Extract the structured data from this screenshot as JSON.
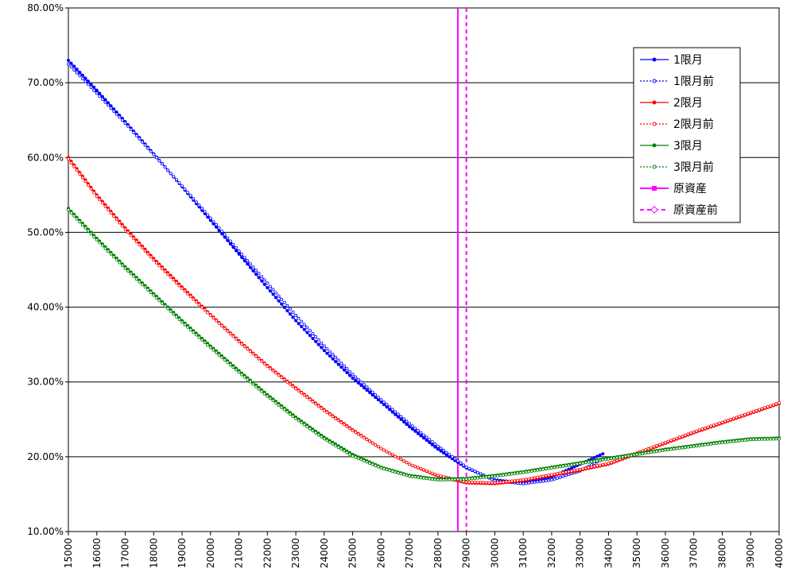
{
  "chart_data": {
    "type": "line",
    "title": "",
    "xlabel": "",
    "ylabel": "",
    "xlim": [
      15000,
      40000
    ],
    "ylim": [
      10,
      80
    ],
    "x_ticks": [
      15000,
      16000,
      17000,
      18000,
      19000,
      20000,
      21000,
      22000,
      23000,
      24000,
      25000,
      26000,
      27000,
      28000,
      29000,
      30000,
      31000,
      32000,
      33000,
      34000,
      35000,
      36000,
      37000,
      38000,
      39000,
      40000
    ],
    "x_tick_labels": [
      "15000",
      "16000",
      "17000",
      "18000",
      "19000",
      "20000",
      "21000",
      "22000",
      "23000",
      "24000",
      "25000",
      "26000",
      "27000",
      "28000",
      "29000",
      "30000",
      "31000",
      "32000",
      "33000",
      "34000",
      "35000",
      "36000",
      "37000",
      "38000",
      "39000",
      "40000"
    ],
    "y_ticks": [
      10,
      20,
      30,
      40,
      50,
      60,
      70,
      80
    ],
    "y_tick_labels": [
      "10.00%",
      "20.00%",
      "30.00%",
      "40.00%",
      "50.00%",
      "60.00%",
      "70.00%",
      "80.00%"
    ],
    "grid": "horizontal",
    "legend_position": "top-right",
    "series": [
      {
        "name": "1限月",
        "color": "#0000ff",
        "style": "solid",
        "marker": "filled",
        "points": [
          [
            15000,
            73.0
          ],
          [
            16000,
            69.0
          ],
          [
            17000,
            64.8
          ],
          [
            18000,
            60.5
          ],
          [
            19000,
            56.1
          ],
          [
            20000,
            51.6
          ],
          [
            21000,
            47.1
          ],
          [
            22000,
            42.6
          ],
          [
            23000,
            38.2
          ],
          [
            24000,
            34.2
          ],
          [
            25000,
            30.5
          ],
          [
            26000,
            27.3
          ],
          [
            27000,
            24.0
          ],
          [
            28000,
            21.0
          ],
          [
            29000,
            18.5
          ],
          [
            30000,
            16.9
          ],
          [
            31000,
            16.5
          ],
          [
            32000,
            17.3
          ],
          [
            33000,
            19.0
          ],
          [
            33800,
            20.4
          ]
        ]
      },
      {
        "name": "1限月前",
        "color": "#0000ff",
        "style": "dotted",
        "marker": "open",
        "points": [
          [
            15000,
            72.5
          ],
          [
            16000,
            68.6
          ],
          [
            17000,
            64.6
          ],
          [
            18000,
            60.4
          ],
          [
            19000,
            56.2
          ],
          [
            20000,
            51.9
          ],
          [
            21000,
            47.5
          ],
          [
            22000,
            43.2
          ],
          [
            23000,
            38.9
          ],
          [
            24000,
            34.8
          ],
          [
            25000,
            31.0
          ],
          [
            26000,
            27.6
          ],
          [
            27000,
            24.4
          ],
          [
            28000,
            21.4
          ],
          [
            29000,
            18.6
          ],
          [
            30000,
            16.8
          ],
          [
            31000,
            16.4
          ],
          [
            32000,
            16.9
          ],
          [
            33000,
            18.1
          ],
          [
            33800,
            19.7
          ]
        ]
      },
      {
        "name": "2限月",
        "color": "#ff0000",
        "style": "solid",
        "marker": "filled",
        "points": [
          [
            15000,
            60.0
          ],
          [
            16000,
            55.0
          ],
          [
            17000,
            50.6
          ],
          [
            18000,
            46.5
          ],
          [
            19000,
            42.7
          ],
          [
            20000,
            39.0
          ],
          [
            21000,
            35.5
          ],
          [
            22000,
            32.2
          ],
          [
            23000,
            29.2
          ],
          [
            24000,
            26.3
          ],
          [
            25000,
            23.6
          ],
          [
            26000,
            21.1
          ],
          [
            27000,
            19.0
          ],
          [
            28000,
            17.4
          ],
          [
            29000,
            16.5
          ],
          [
            30000,
            16.4
          ],
          [
            31000,
            16.8
          ],
          [
            32000,
            17.5
          ],
          [
            33000,
            18.2
          ],
          [
            34000,
            19.0
          ],
          [
            35000,
            20.4
          ],
          [
            36000,
            21.8
          ],
          [
            37000,
            23.2
          ],
          [
            38000,
            24.5
          ],
          [
            39000,
            25.8
          ],
          [
            40000,
            27.1
          ]
        ]
      },
      {
        "name": "2限月前",
        "color": "#ff0000",
        "style": "dotted",
        "marker": "open",
        "points": [
          [
            15000,
            59.8
          ],
          [
            16000,
            54.8
          ],
          [
            17000,
            50.4
          ],
          [
            18000,
            46.3
          ],
          [
            19000,
            42.5
          ],
          [
            20000,
            38.9
          ],
          [
            21000,
            35.4
          ],
          [
            22000,
            32.1
          ],
          [
            23000,
            29.1
          ],
          [
            24000,
            26.2
          ],
          [
            25000,
            23.5
          ],
          [
            26000,
            21.1
          ],
          [
            27000,
            19.0
          ],
          [
            28000,
            17.5
          ],
          [
            29000,
            16.6
          ],
          [
            30000,
            16.5
          ],
          [
            31000,
            16.9
          ],
          [
            32000,
            17.6
          ],
          [
            33000,
            18.3
          ],
          [
            34000,
            19.1
          ],
          [
            35000,
            20.5
          ],
          [
            36000,
            21.9
          ],
          [
            37000,
            23.3
          ],
          [
            38000,
            24.6
          ],
          [
            39000,
            25.9
          ],
          [
            40000,
            27.2
          ]
        ]
      },
      {
        "name": "3限月",
        "color": "#008000",
        "style": "solid",
        "marker": "filled",
        "points": [
          [
            15000,
            53.2
          ],
          [
            16000,
            49.2
          ],
          [
            17000,
            45.4
          ],
          [
            18000,
            41.8
          ],
          [
            19000,
            38.2
          ],
          [
            20000,
            34.8
          ],
          [
            21000,
            31.5
          ],
          [
            22000,
            28.3
          ],
          [
            23000,
            25.3
          ],
          [
            24000,
            22.6
          ],
          [
            25000,
            20.3
          ],
          [
            26000,
            18.6
          ],
          [
            27000,
            17.5
          ],
          [
            28000,
            17.0
          ],
          [
            29000,
            17.1
          ],
          [
            30000,
            17.5
          ],
          [
            31000,
            18.0
          ],
          [
            32000,
            18.6
          ],
          [
            33000,
            19.2
          ],
          [
            34000,
            19.8
          ],
          [
            35000,
            20.4
          ],
          [
            36000,
            21.0
          ],
          [
            37000,
            21.5
          ],
          [
            38000,
            22.0
          ],
          [
            39000,
            22.4
          ],
          [
            40000,
            22.5
          ]
        ]
      },
      {
        "name": "3限月前",
        "color": "#008000",
        "style": "dotted",
        "marker": "open",
        "points": [
          [
            15000,
            53.0
          ],
          [
            16000,
            49.0
          ],
          [
            17000,
            45.2
          ],
          [
            18000,
            41.6
          ],
          [
            19000,
            38.0
          ],
          [
            20000,
            34.6
          ],
          [
            21000,
            31.3
          ],
          [
            22000,
            28.1
          ],
          [
            23000,
            25.1
          ],
          [
            24000,
            22.4
          ],
          [
            25000,
            20.1
          ],
          [
            26000,
            18.5
          ],
          [
            27000,
            17.4
          ],
          [
            28000,
            16.9
          ],
          [
            29000,
            17.0
          ],
          [
            30000,
            17.4
          ],
          [
            31000,
            17.9
          ],
          [
            32000,
            18.5
          ],
          [
            33000,
            19.1
          ],
          [
            34000,
            19.7
          ],
          [
            35000,
            20.3
          ],
          [
            36000,
            20.9
          ],
          [
            37000,
            21.4
          ],
          [
            38000,
            21.9
          ],
          [
            39000,
            22.3
          ],
          [
            40000,
            22.4
          ]
        ]
      },
      {
        "name": "原資産",
        "color": "#ff00ff",
        "style": "solid",
        "marker": "square",
        "vertical_x": 28700
      },
      {
        "name": "原資産前",
        "color": "#ff00ff",
        "style": "dashed",
        "marker": "open-diamond",
        "vertical_x": 29000
      }
    ]
  }
}
